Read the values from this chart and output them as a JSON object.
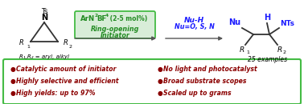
{
  "bg_color": "#ffffff",
  "box_color": "#44bb44",
  "bullet_color": "#8b0000",
  "bullet_text_color": "#8b0000",
  "arrow_color": "#555555",
  "reagent_box_bg": "#d8edd8",
  "reagent_box_edge": "#44bb44",
  "left_col_bullets": [
    "Catalytic amount of initiator",
    "Highly selective and efficient",
    "High yields: up to 97%"
  ],
  "right_col_bullets": [
    "No light and photocatalyst",
    "Broad substrate scopes",
    "Scaled up to grams"
  ],
  "examples_text": "25 examples",
  "r1r2_text": "R₁,R₂ = aryl, alkyl",
  "green": "#228b22",
  "blue": "#1a1aff",
  "dark_blue": "#0000cc"
}
